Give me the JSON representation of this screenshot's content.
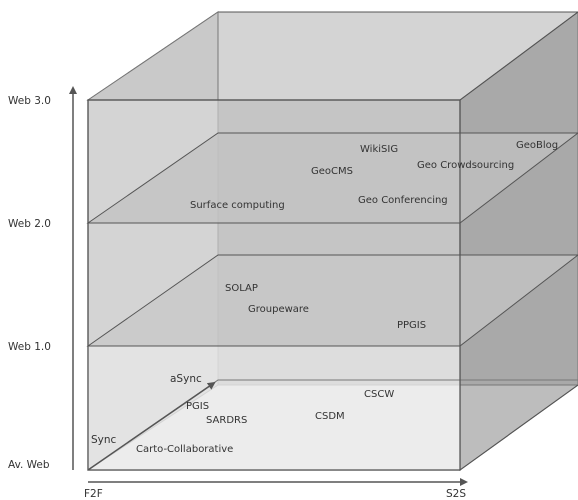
{
  "diagram": {
    "y_levels": [
      "Web 3.0",
      "Web 2.0",
      "Web 1.0",
      "Av. Web"
    ],
    "x_axis": {
      "start_label": "F2F",
      "end_label": "S2S"
    },
    "z_axis": {
      "start_label": "Sync",
      "end_label": "aSync"
    },
    "items": {
      "wikisig": "WikiSIG",
      "geocms": "GeoCMS",
      "geo_crowdsourcing": "Geo Crowdsourcing",
      "geoblog": "GeoBlog",
      "surface_computing": "Surface computing",
      "geo_conferencing": "Geo Conferencing",
      "solap": "SOLAP",
      "groupeware": "Groupeware",
      "ppgis": "PPGIS",
      "pgis": "PGIS",
      "sardrs": "SARDRS",
      "cscw": "CSCW",
      "csdm": "CSDM",
      "carto_collaborative": "Carto-Collaborative"
    },
    "colors": {
      "back_wall": "#a6a6a6",
      "side_face": "#bdbdbd",
      "front_face": "#d9d9d9",
      "bottom_front": "#e6e6e6",
      "plane": "#c4c4c4",
      "edge": "#555555"
    }
  }
}
